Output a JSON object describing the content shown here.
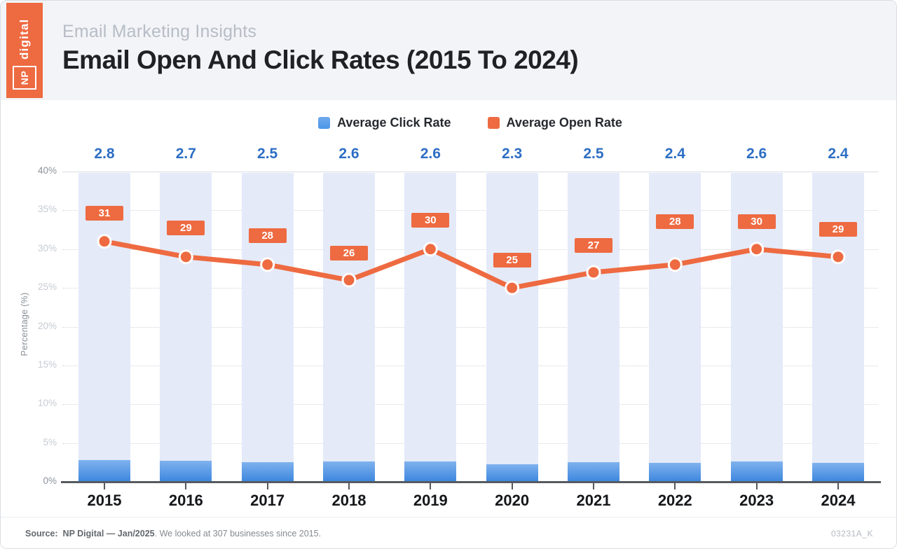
{
  "header": {
    "logo": {
      "np": "NP",
      "digital": "digital"
    },
    "subtitle": "Email Marketing Insights",
    "title": "Email Open And Click Rates (2015 To 2024)"
  },
  "legend": [
    {
      "label": "Average Click Rate",
      "color": "#4b96e8"
    },
    {
      "label": "Average Open Rate",
      "color": "#ee6a41"
    }
  ],
  "chart_data": {
    "type": "bar",
    "subtype": "combo bar + line",
    "categories": [
      "2015",
      "2016",
      "2017",
      "2018",
      "2019",
      "2020",
      "2021",
      "2022",
      "2023",
      "2024"
    ],
    "series": [
      {
        "name": "Average Click Rate",
        "type": "bar",
        "color": "#4b96e8",
        "values": [
          2.8,
          2.7,
          2.5,
          2.6,
          2.6,
          2.3,
          2.5,
          2.4,
          2.6,
          2.4
        ]
      },
      {
        "name": "Average Open Rate",
        "type": "line",
        "color": "#ee6a41",
        "values": [
          31,
          29,
          28,
          26,
          30,
          25,
          27,
          28,
          30,
          29
        ]
      }
    ],
    "title": "Email Open And Click Rates (2015 To 2024)",
    "xlabel": "",
    "ylabel": "Percentage (%)",
    "ylim": [
      0,
      40
    ],
    "yticks": [
      "40%",
      "35%",
      "30%",
      "25%",
      "20%",
      "15%",
      "10%",
      "5%",
      "0%"
    ],
    "grid": "dotted horizontal, solid top and bottom axis",
    "legend_position": "top center",
    "column_background_color": "#e4eaf8"
  },
  "footer": {
    "source_label": "Source:",
    "source_bold": "NP Digital — Jan/2025",
    "source_rest": ". We looked at 307 businesses since 2015.",
    "code": "03231A_K"
  },
  "colors": {
    "accent_orange": "#ee6a41",
    "bar_blue": "#4b96e8",
    "bar_blue_light": "#7fb2ee",
    "value_label_blue": "#2d6ec4",
    "column_background": "#e4eaf8",
    "header_background": "#f2f4f7"
  }
}
